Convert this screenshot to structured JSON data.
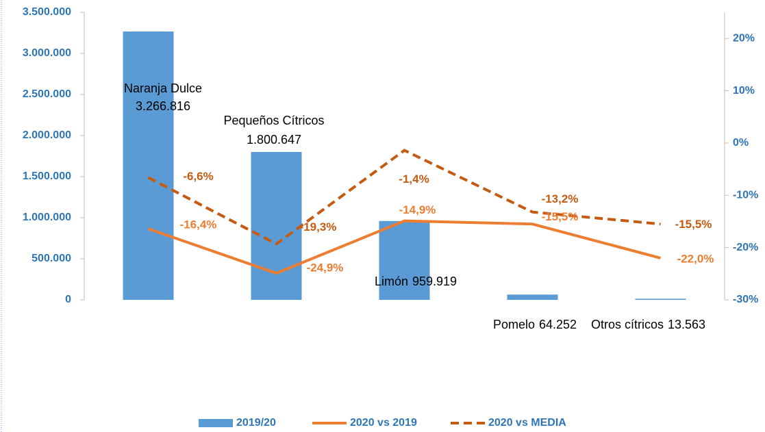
{
  "chart_data": {
    "type": "bar_line",
    "categories": [
      "Naranja Dulce",
      "Pequeños Cítricos",
      "Limón",
      "Pomelo",
      "Otros cítricos"
    ],
    "series": [
      {
        "name": "2019/20",
        "type": "bar",
        "color": "#5b9bd5",
        "axis": "y",
        "values": [
          3266816,
          1800647,
          959919,
          64252,
          13563
        ],
        "value_labels": [
          "3.266.816",
          "1.800.647",
          "959.919",
          "64.252",
          "13.563"
        ]
      },
      {
        "name": "2020 vs 2019",
        "type": "line",
        "color": "#ed7d31",
        "axis": "y2",
        "dashed": false,
        "values": [
          -16.4,
          -24.9,
          -14.9,
          -15.5,
          -22.0
        ],
        "value_labels": [
          "-16,4%",
          "-24,9%",
          "-14,9%",
          "-15,5%",
          "-22,0%"
        ]
      },
      {
        "name": "2020 vs MEDIA",
        "type": "line",
        "color": "#c55a11",
        "axis": "y2",
        "dashed": true,
        "values": [
          -6.6,
          -19.3,
          -1.4,
          -13.2,
          -15.5
        ],
        "value_labels": [
          "-6,6%",
          "-19,3%",
          "-1,4%",
          "-13,2%",
          "-15,5%"
        ]
      }
    ],
    "ylim": [
      0,
      3500000
    ],
    "yticks": [
      0,
      {
        "value": 500000,
        "label": "500.000"
      },
      {
        "value": 1000000,
        "label": "1.000.000"
      },
      {
        "value": 1500000,
        "label": "1.500.000"
      },
      {
        "value": 2000000,
        "label": "2.000.000"
      },
      {
        "value": 2500000,
        "label": "2.500.000"
      },
      {
        "value": 3000000,
        "label": "3.000.000"
      },
      {
        "value": 3500000,
        "label": "3.500.000"
      }
    ],
    "y2lim": [
      -30,
      25
    ],
    "y2ticks": [
      {
        "value": -30,
        "label": "-30%"
      },
      {
        "value": -20,
        "label": "-20%"
      },
      {
        "value": -10,
        "label": "-10%"
      },
      {
        "value": 0,
        "label": "0%"
      },
      {
        "value": 10,
        "label": "10%"
      },
      {
        "value": 20,
        "label": "20%"
      }
    ],
    "legend": "bottom"
  }
}
